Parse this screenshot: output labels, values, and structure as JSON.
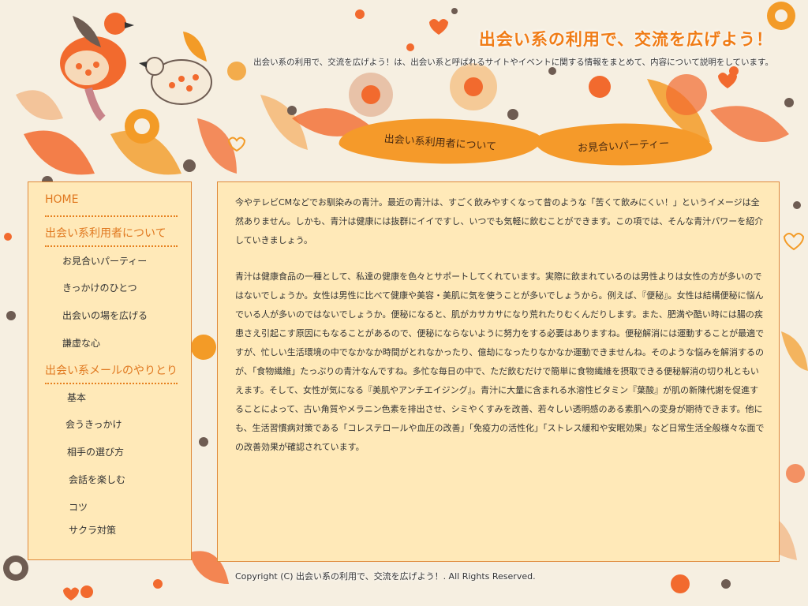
{
  "header": {
    "title": "出会い系の利用で、交流を広げよう！",
    "description": "出会い系の利用で、交流を広げよう！は、出会い系と呼ばれるサイトやイベントに関する情報をまとめて、内容について説明をしています。"
  },
  "nav": {
    "items": [
      {
        "label": "出会い系利用者について"
      },
      {
        "label": "お見合いパーティー"
      }
    ]
  },
  "sidebar": {
    "home": "HOME",
    "section1": {
      "title": "出会い系利用者について",
      "items": [
        "お見合いパーティー",
        "きっかけのひとつ",
        "出会いの場を広げる",
        "謙虚な心"
      ]
    },
    "section2": {
      "title": "出会い系メールのやりとり",
      "items": [
        "基本",
        "会うきっかけ",
        "相手の選び方",
        "会話を楽しむ",
        "コツ",
        "サクラ対策"
      ]
    }
  },
  "content": {
    "paragraphs": [
      "今やテレビCMなどでお馴染みの青汁。最近の青汁は、すごく飲みやすくなって昔のような「苦くて飲みにくい！」というイメージは全然ありません。しかも、青汁は健康には抜群にイイですし、いつでも気軽に飲むことができます。この項では、そんな青汁パワーを紹介していきましょう。",
      "青汁は健康食品の一種として、私達の健康を色々とサポートしてくれています。実際に飲まれているのは男性よりは女性の方が多いのではないでしょうか。女性は男性に比べて健康や美容・美肌に気を使うことが多いでしょうから。例えば、『便秘』。女性は結構便秘に悩んでいる人が多いのではないでしょうか。便秘になると、肌がカサカサになり荒れたりむくんだりします。また、肥満や酷い時には腸の疾患さえ引起こす原因にもなることがあるので、便秘にならないように努力をする必要はありますね。便秘解消には運動することが最適ですが、忙しい生活環境の中でなかなか時間がとれなかったり、億劫になったりなかなか運動できませんね。そのような悩みを解消するのが、「食物繊維」たっぷりの青汁なんですね。多忙な毎日の中で、ただ飲むだけで簡単に食物繊維を摂取できる便秘解消の切り札ともいえます。そして、女性が気になる『美肌やアンチエイジング』。青汁に大量に含まれる水溶性ビタミン『葉酸』が肌の新陳代謝を促進することによって、古い角質やメラニン色素を排出させ、シミやくすみを改善、若々しい透明感のある素肌への変身が期待できます。他にも、生活習慣病対策である「コレステロールや血圧の改善」「免疫力の活性化」「ストレス緩和や安眠効果」など日常生活全般様々な面での改善効果が確認されています。"
    ]
  },
  "footer": {
    "copyright": "Copyright (C)  出会い系の利用で、交流を広げよう！.   All Rights Reserved."
  },
  "colors": {
    "accent": "#f07c16",
    "panel": "#ffe9b8",
    "background": "#f6efe1"
  }
}
